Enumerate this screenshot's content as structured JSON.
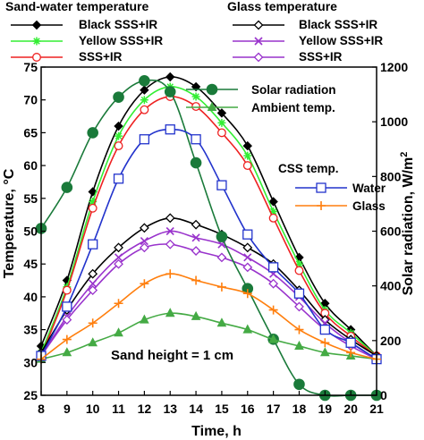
{
  "chart_data": {
    "type": "line",
    "x": [
      8,
      9,
      10,
      11,
      12,
      13,
      14,
      15,
      16,
      17,
      18,
      19,
      20,
      21
    ],
    "xlabel": "Time, h",
    "ylabel": "Temperature, °C",
    "y2label": "Solar radiation, W/m",
    "y2label_sup": "2",
    "xlim": [
      8,
      21
    ],
    "ylim": [
      25,
      75
    ],
    "y2lim": [
      0,
      1200
    ],
    "xticks": [
      "8",
      "9",
      "10",
      "11",
      "12",
      "13",
      "14",
      "15",
      "16",
      "17",
      "18",
      "19",
      "20",
      "21"
    ],
    "yticks": [
      "25",
      "30",
      "35",
      "40",
      "45",
      "50",
      "55",
      "60",
      "65",
      "70",
      "75"
    ],
    "y2ticks": [
      "0",
      "200",
      "400",
      "600",
      "800",
      "1000",
      "1200"
    ],
    "grid": false,
    "legend_groups": {
      "sand_water": "Sand-water temperature",
      "glass": "Glass temperature",
      "css": "CSS temp."
    },
    "annotation": "Sand height  = 1 cm",
    "series": [
      {
        "name": "Black SSS+IR",
        "group": "sand_water",
        "axis": "left",
        "color": "#000000",
        "marker": "diamond-filled",
        "values": [
          32.5,
          42.5,
          56,
          66,
          71.5,
          73.5,
          72,
          68,
          63,
          54.5,
          46,
          39,
          35,
          31
        ]
      },
      {
        "name": "Yellow  SSS+IR",
        "group": "sand_water",
        "axis": "left",
        "color": "#33ee33",
        "marker": "star",
        "values": [
          31.5,
          41.5,
          54.5,
          64.5,
          70,
          72,
          70.5,
          66.5,
          61.5,
          53,
          45,
          38,
          34.5,
          31
        ]
      },
      {
        "name": "SSS+IR",
        "group": "sand_water",
        "axis": "left",
        "color": "#ee2222",
        "marker": "circle-open",
        "values": [
          31,
          41,
          53.5,
          63,
          68.5,
          70.5,
          69,
          65,
          60,
          52,
          44,
          37.5,
          34,
          31
        ]
      },
      {
        "name": "Black SSS+IR",
        "group": "glass",
        "axis": "left",
        "color": "#000000",
        "marker": "diamond-open",
        "values": [
          31.5,
          38,
          43.5,
          47.5,
          50.5,
          52,
          51,
          49.5,
          47.5,
          45,
          41,
          36.5,
          33.5,
          31
        ]
      },
      {
        "name": "Yellow SSS+IR",
        "group": "glass",
        "axis": "left",
        "color": "#9933cc",
        "marker": "x",
        "values": [
          31,
          37,
          42,
          46,
          48.5,
          50,
          49,
          48,
          46,
          43.5,
          40,
          36,
          33,
          30.5
        ]
      },
      {
        "name": "SSS+IR",
        "group": "glass",
        "axis": "left",
        "color": "#9933cc",
        "marker": "diamond-open",
        "values": [
          31,
          36.5,
          41,
          45,
          47.5,
          48,
          47,
          46,
          44.5,
          42,
          38.5,
          35,
          32.5,
          30.5
        ]
      },
      {
        "name": "Solar radiation",
        "group": "main",
        "axis": "right",
        "color": "#1a7a3a",
        "marker": "circle-filled",
        "values": [
          610,
          760,
          960,
          1090,
          1150,
          1110,
          850,
          580,
          390,
          205,
          40,
          0,
          0,
          0
        ]
      },
      {
        "name": "Ambient temp.",
        "group": "main",
        "axis": "left",
        "color": "#44aa44",
        "marker": "triangle",
        "values": [
          30.5,
          31.5,
          33,
          34.5,
          36.5,
          37.5,
          37,
          36,
          35,
          33.5,
          32.5,
          31.5,
          31,
          30.5
        ]
      },
      {
        "name": "Water",
        "group": "css",
        "axis": "left",
        "color": "#2233cc",
        "marker": "square-open",
        "values": [
          31,
          38.5,
          48,
          58,
          64,
          65.5,
          64,
          57,
          49.5,
          44.5,
          40.5,
          35,
          33,
          30.5
        ]
      },
      {
        "name": "Glass",
        "group": "css",
        "axis": "left",
        "color": "#ff7f0e",
        "marker": "plus",
        "values": [
          30.5,
          33.5,
          36,
          39,
          42,
          43.5,
          42.5,
          41.5,
          40.5,
          38,
          35,
          33,
          31.5,
          30.5
        ]
      }
    ]
  }
}
